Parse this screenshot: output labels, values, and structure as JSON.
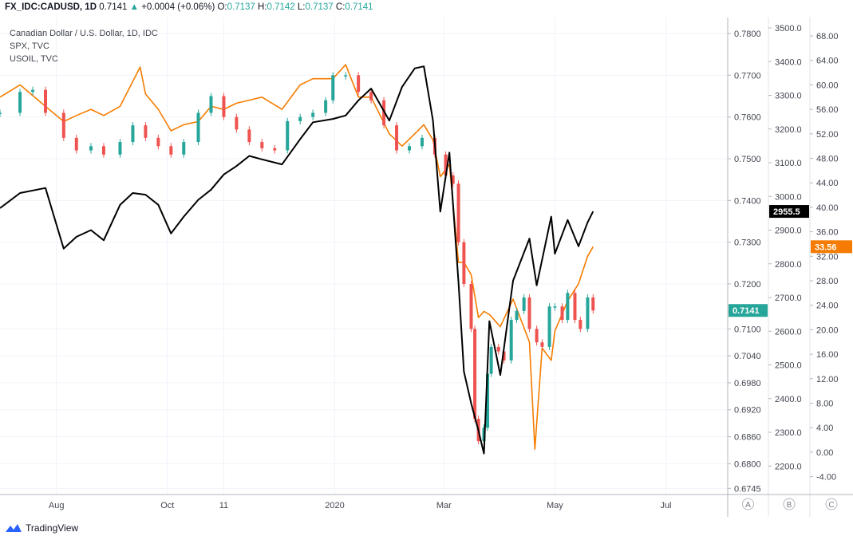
{
  "header": {
    "symbol": "FX_IDC:CADUSD, 1D",
    "last": "0.7141",
    "arrow": "▲",
    "change": "+0.0004 (+0.06%)",
    "o_label": "O:",
    "o": "0.7137",
    "h_label": "H:",
    "h": "0.7142",
    "l_label": "L:",
    "l": "0.7137",
    "c_label": "C:",
    "c": "0.7141"
  },
  "legend": {
    "main": "Canadian Dollar / U.S. Dollar, 1D, IDC",
    "spx": "SPX, TVC",
    "usoil": "USOIL, TVC"
  },
  "footer": {
    "brand": "TradingView"
  },
  "colors": {
    "up": "#26a69a",
    "down": "#ef5350",
    "spx": "#000000",
    "oil": "#f57c00",
    "grid": "#f0f3fa"
  },
  "chart_data": {
    "type": "line",
    "x_ticks": [
      "Aug",
      "Oct",
      "11",
      "2020",
      "Mar",
      "May",
      "Jul"
    ],
    "x_tick_dates": [
      "2019-08-01",
      "2019-10-01",
      "2019-11-01",
      "2020-01-01",
      "2020-03-01",
      "2020-05-01",
      "2020-07-01"
    ],
    "x_range": [
      "2019-07-01",
      "2020-08-04"
    ],
    "axes": [
      {
        "id": "A",
        "series": "Canadian Dollar / U.S. Dollar",
        "ticks": [
          "0.7800",
          "0.7700",
          "0.7600",
          "0.7500",
          "0.7400",
          "0.7300",
          "0.7200",
          "0.7100",
          "0.7040",
          "0.6980",
          "0.6920",
          "0.6860",
          "0.6800",
          "0.6745"
        ],
        "last_value": "0.7141"
      },
      {
        "id": "B",
        "series": "SPX",
        "ticks": [
          "3500.0",
          "3400.0",
          "3300.0",
          "3200.0",
          "3100.0",
          "3000.0",
          "2900.0",
          "2800.0",
          "2700.0",
          "2600.0",
          "2500.0",
          "2400.0",
          "2300.0",
          "2200.0"
        ],
        "last_value": "2955.5"
      },
      {
        "id": "C",
        "series": "USOIL",
        "ticks": [
          "68.00",
          "64.00",
          "60.00",
          "56.00",
          "52.00",
          "48.00",
          "44.00",
          "40.00",
          "36.00",
          "32.00",
          "28.00",
          "24.00",
          "20.00",
          "16.00",
          "12.00",
          "8.00",
          "4.00",
          "0.00",
          "-4.00"
        ],
        "last_value": "33.56"
      }
    ],
    "series": [
      {
        "name": "CADUSD",
        "axis": "A",
        "style": "candles",
        "points": [
          [
            "2019-07-01",
            0.761
          ],
          [
            "2019-07-12",
            0.766
          ],
          [
            "2019-07-19",
            0.7665
          ],
          [
            "2019-07-26",
            0.761
          ],
          [
            "2019-08-05",
            0.755
          ],
          [
            "2019-08-12",
            0.752
          ],
          [
            "2019-08-20",
            0.753
          ],
          [
            "2019-08-27",
            0.751
          ],
          [
            "2019-09-05",
            0.754
          ],
          [
            "2019-09-12",
            0.758
          ],
          [
            "2019-09-19",
            0.755
          ],
          [
            "2019-09-26",
            0.753
          ],
          [
            "2019-10-03",
            0.751
          ],
          [
            "2019-10-10",
            0.754
          ],
          [
            "2019-10-18",
            0.761
          ],
          [
            "2019-10-25",
            0.765
          ],
          [
            "2019-11-01",
            0.76
          ],
          [
            "2019-11-08",
            0.757
          ],
          [
            "2019-11-15",
            0.754
          ],
          [
            "2019-11-22",
            0.7525
          ],
          [
            "2019-11-29",
            0.752
          ],
          [
            "2019-12-06",
            0.759
          ],
          [
            "2019-12-13",
            0.76
          ],
          [
            "2019-12-20",
            0.761
          ],
          [
            "2019-12-27",
            0.764
          ],
          [
            "2019-12-31",
            0.77
          ],
          [
            "2020-01-07",
            0.77
          ],
          [
            "2020-01-14",
            0.766
          ],
          [
            "2020-01-21",
            0.764
          ],
          [
            "2020-01-28",
            0.758
          ],
          [
            "2020-02-04",
            0.752
          ],
          [
            "2020-02-11",
            0.753
          ],
          [
            "2020-02-18",
            0.755
          ],
          [
            "2020-02-25",
            0.751
          ],
          [
            "2020-03-02",
            0.746
          ],
          [
            "2020-03-06",
            0.744
          ],
          [
            "2020-03-09",
            0.73
          ],
          [
            "2020-03-12",
            0.72
          ],
          [
            "2020-03-16",
            0.71
          ],
          [
            "2020-03-18",
            0.69
          ],
          [
            "2020-03-20",
            0.685
          ],
          [
            "2020-03-23",
            0.688
          ],
          [
            "2020-03-25",
            0.7
          ],
          [
            "2020-03-27",
            0.706
          ],
          [
            "2020-03-31",
            0.705
          ],
          [
            "2020-04-03",
            0.703
          ],
          [
            "2020-04-07",
            0.712
          ],
          [
            "2020-04-10",
            0.714
          ],
          [
            "2020-04-14",
            0.717
          ],
          [
            "2020-04-17",
            0.71
          ],
          [
            "2020-04-21",
            0.707
          ],
          [
            "2020-04-24",
            0.706
          ],
          [
            "2020-04-28",
            0.715
          ],
          [
            "2020-05-01",
            0.715
          ],
          [
            "2020-05-05",
            0.712
          ],
          [
            "2020-05-08",
            0.718
          ],
          [
            "2020-05-12",
            0.712
          ],
          [
            "2020-05-15",
            0.71
          ],
          [
            "2020-05-19",
            0.717
          ],
          [
            "2020-05-22",
            0.7141
          ]
        ]
      },
      {
        "name": "SPX",
        "axis": "B",
        "style": "line",
        "points": [
          [
            "2019-07-01",
            2965
          ],
          [
            "2019-07-12",
            3010
          ],
          [
            "2019-07-26",
            3025
          ],
          [
            "2019-08-05",
            2845
          ],
          [
            "2019-08-12",
            2880
          ],
          [
            "2019-08-20",
            2900
          ],
          [
            "2019-08-27",
            2870
          ],
          [
            "2019-09-05",
            2975
          ],
          [
            "2019-09-12",
            3010
          ],
          [
            "2019-09-19",
            3005
          ],
          [
            "2019-09-26",
            2975
          ],
          [
            "2019-10-03",
            2890
          ],
          [
            "2019-10-10",
            2940
          ],
          [
            "2019-10-18",
            2990
          ],
          [
            "2019-10-25",
            3020
          ],
          [
            "2019-11-01",
            3065
          ],
          [
            "2019-11-08",
            3090
          ],
          [
            "2019-11-15",
            3120
          ],
          [
            "2019-11-22",
            3110
          ],
          [
            "2019-12-03",
            3095
          ],
          [
            "2019-12-13",
            3170
          ],
          [
            "2019-12-20",
            3220
          ],
          [
            "2019-12-31",
            3230
          ],
          [
            "2020-01-07",
            3240
          ],
          [
            "2020-01-14",
            3285
          ],
          [
            "2020-01-21",
            3320
          ],
          [
            "2020-01-31",
            3225
          ],
          [
            "2020-02-07",
            3325
          ],
          [
            "2020-02-14",
            3380
          ],
          [
            "2020-02-19",
            3386
          ],
          [
            "2020-02-24",
            3225
          ],
          [
            "2020-02-28",
            2955
          ],
          [
            "2020-03-04",
            3130
          ],
          [
            "2020-03-09",
            2745
          ],
          [
            "2020-03-12",
            2480
          ],
          [
            "2020-03-16",
            2386
          ],
          [
            "2020-03-20",
            2305
          ],
          [
            "2020-03-23",
            2237
          ],
          [
            "2020-03-26",
            2630
          ],
          [
            "2020-04-01",
            2470
          ],
          [
            "2020-04-08",
            2750
          ],
          [
            "2020-04-17",
            2875
          ],
          [
            "2020-04-21",
            2736
          ],
          [
            "2020-04-29",
            2940
          ],
          [
            "2020-05-01",
            2830
          ],
          [
            "2020-05-08",
            2930
          ],
          [
            "2020-05-14",
            2852
          ],
          [
            "2020-05-19",
            2923
          ],
          [
            "2020-05-22",
            2955.5
          ]
        ]
      },
      {
        "name": "USOIL",
        "axis": "C",
        "style": "line",
        "points": [
          [
            "2019-07-01",
            58
          ],
          [
            "2019-07-12",
            60
          ],
          [
            "2019-07-26",
            56.5
          ],
          [
            "2019-08-05",
            54
          ],
          [
            "2019-08-12",
            55
          ],
          [
            "2019-08-20",
            56
          ],
          [
            "2019-08-27",
            55
          ],
          [
            "2019-09-05",
            56.5
          ],
          [
            "2019-09-16",
            62.9
          ],
          [
            "2019-09-19",
            58.5
          ],
          [
            "2019-09-26",
            56
          ],
          [
            "2019-10-03",
            52.5
          ],
          [
            "2019-10-10",
            53.5
          ],
          [
            "2019-10-18",
            54
          ],
          [
            "2019-10-25",
            56.5
          ],
          [
            "2019-11-01",
            56
          ],
          [
            "2019-11-08",
            57
          ],
          [
            "2019-11-15",
            57.5
          ],
          [
            "2019-11-22",
            58
          ],
          [
            "2019-12-03",
            56
          ],
          [
            "2019-12-13",
            60
          ],
          [
            "2019-12-20",
            61
          ],
          [
            "2019-12-31",
            61
          ],
          [
            "2020-01-07",
            63.3
          ],
          [
            "2020-01-14",
            58
          ],
          [
            "2020-01-21",
            58
          ],
          [
            "2020-01-31",
            52
          ],
          [
            "2020-02-07",
            50
          ],
          [
            "2020-02-14",
            52
          ],
          [
            "2020-02-19",
            53.5
          ],
          [
            "2020-02-24",
            51
          ],
          [
            "2020-02-28",
            45
          ],
          [
            "2020-03-04",
            47
          ],
          [
            "2020-03-09",
            31
          ],
          [
            "2020-03-12",
            31
          ],
          [
            "2020-03-16",
            29
          ],
          [
            "2020-03-20",
            22
          ],
          [
            "2020-03-23",
            23
          ],
          [
            "2020-03-26",
            22.5
          ],
          [
            "2020-04-01",
            20.5
          ],
          [
            "2020-04-08",
            25
          ],
          [
            "2020-04-17",
            18
          ],
          [
            "2020-04-20",
            0.5
          ],
          [
            "2020-04-24",
            17
          ],
          [
            "2020-04-29",
            15
          ],
          [
            "2020-05-01",
            19.8
          ],
          [
            "2020-05-08",
            24.7
          ],
          [
            "2020-05-14",
            27.5
          ],
          [
            "2020-05-19",
            32
          ],
          [
            "2020-05-22",
            33.56
          ]
        ]
      }
    ],
    "grid": true
  }
}
